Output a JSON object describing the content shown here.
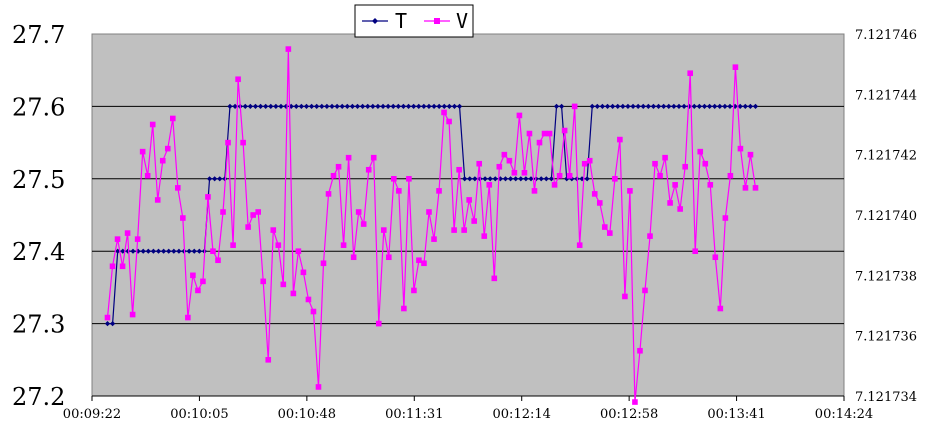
{
  "chart_data": {
    "type": "line",
    "legend_position": "top-center",
    "grid": {
      "horizontal": true,
      "vertical": false
    },
    "plot_background": "#c0c0c0",
    "x_ticks": [
      "00:09:22",
      "00:10:05",
      "00:10:48",
      "00:11:31",
      "00:12:14",
      "00:12:58",
      "00:13:41",
      "00:14:24"
    ],
    "y_left": {
      "ticks": [
        "27.2",
        "27.3",
        "27.4",
        "27.5",
        "27.6",
        "27.7"
      ],
      "lim": [
        27.2,
        27.7
      ]
    },
    "y_right": {
      "ticks": [
        "7.121734",
        "7.121736",
        "7.121738",
        "7.121740",
        "7.121742",
        "7.121744",
        "7.121746"
      ],
      "lim": [
        7.121734,
        7.121746
      ]
    },
    "series": [
      {
        "name": "T",
        "axis": "left",
        "color": "#000080",
        "marker": "diamond",
        "values": [
          27.3,
          27.3,
          27.4,
          27.4,
          27.4,
          27.4,
          27.4,
          27.4,
          27.4,
          27.4,
          27.4,
          27.4,
          27.4,
          27.4,
          27.4,
          27.4,
          27.4,
          27.4,
          27.4,
          27.4,
          27.5,
          27.5,
          27.5,
          27.5,
          27.6,
          27.6,
          27.6,
          27.6,
          27.6,
          27.6,
          27.6,
          27.6,
          27.6,
          27.6,
          27.6,
          27.6,
          27.6,
          27.6,
          27.6,
          27.6,
          27.6,
          27.6,
          27.6,
          27.6,
          27.6,
          27.6,
          27.6,
          27.6,
          27.6,
          27.6,
          27.6,
          27.6,
          27.6,
          27.6,
          27.6,
          27.6,
          27.6,
          27.6,
          27.6,
          27.6,
          27.6,
          27.6,
          27.6,
          27.6,
          27.6,
          27.6,
          27.6,
          27.6,
          27.6,
          27.6,
          27.5,
          27.5,
          27.5,
          27.5,
          27.5,
          27.5,
          27.5,
          27.5,
          27.5,
          27.5,
          27.5,
          27.5,
          27.5,
          27.5,
          27.5,
          27.5,
          27.5,
          27.5,
          27.6,
          27.6,
          27.5,
          27.5,
          27.5,
          27.5,
          27.5,
          27.6,
          27.6,
          27.6,
          27.6,
          27.6,
          27.6,
          27.6,
          27.6,
          27.6,
          27.6,
          27.6,
          27.6,
          27.6,
          27.6,
          27.6,
          27.6,
          27.6,
          27.6,
          27.6,
          27.6,
          27.6,
          27.6,
          27.6,
          27.6,
          27.6,
          27.6,
          27.6,
          27.6,
          27.6,
          27.6,
          27.6,
          27.6,
          27.6
        ]
      },
      {
        "name": "V",
        "axis": "right",
        "color": "#ff00ff",
        "marker": "square",
        "values": [
          7.1217366,
          7.1217383,
          7.1217392,
          7.1217383,
          7.1217394,
          7.1217367,
          7.1217392,
          7.1217421,
          7.1217413,
          7.121743,
          7.1217405,
          7.1217418,
          7.1217422,
          7.1217432,
          7.1217409,
          7.1217399,
          7.1217366,
          7.121738,
          7.1217375,
          7.1217378,
          7.1217406,
          7.1217388,
          7.1217385,
          7.1217401,
          7.1217424,
          7.121739,
          7.1217445,
          7.1217424,
          7.1217396,
          7.12174,
          7.1217401,
          7.1217378,
          7.1217352,
          7.1217395,
          7.121739,
          7.1217377,
          7.1217455,
          7.1217374,
          7.1217388,
          7.1217381,
          7.1217372,
          7.1217368,
          7.1217343,
          7.1217384,
          7.1217407,
          7.1217413,
          7.1217416,
          7.121739,
          7.1217419,
          7.1217386,
          7.1217401,
          7.1217397,
          7.1217415,
          7.1217419,
          7.1217364,
          7.1217395,
          7.1217386,
          7.1217412,
          7.1217408,
          7.1217369,
          7.1217412,
          7.1217375,
          7.1217385,
          7.1217384,
          7.1217401,
          7.1217392,
          7.1217408,
          7.1217434,
          7.1217431,
          7.1217395,
          7.1217415,
          7.1217395,
          7.1217405,
          7.1217398,
          7.1217417,
          7.1217393,
          7.121741,
          7.1217379,
          7.1217416,
          7.121742,
          7.1217418,
          7.1217414,
          7.1217433,
          7.1217414,
          7.1217427,
          7.1217408,
          7.1217424,
          7.1217427,
          7.1217427,
          7.121741,
          7.1217413,
          7.1217428,
          7.1217413,
          7.1217436,
          7.121739,
          7.1217417,
          7.1217418,
          7.1217407,
          7.1217404,
          7.1217396,
          7.1217394,
          7.1217412,
          7.1217425,
          7.1217373,
          7.1217408,
          7.1217338,
          7.1217355,
          7.1217375,
          7.1217393,
          7.1217417,
          7.1217413,
          7.1217419,
          7.1217404,
          7.121741,
          7.1217402,
          7.1217416,
          7.1217447,
          7.1217388,
          7.1217421,
          7.1217417,
          7.121741,
          7.1217386,
          7.1217369,
          7.1217399,
          7.1217413,
          7.1217449,
          7.1217422,
          7.1217409,
          7.121742,
          7.1217409
        ]
      }
    ]
  }
}
